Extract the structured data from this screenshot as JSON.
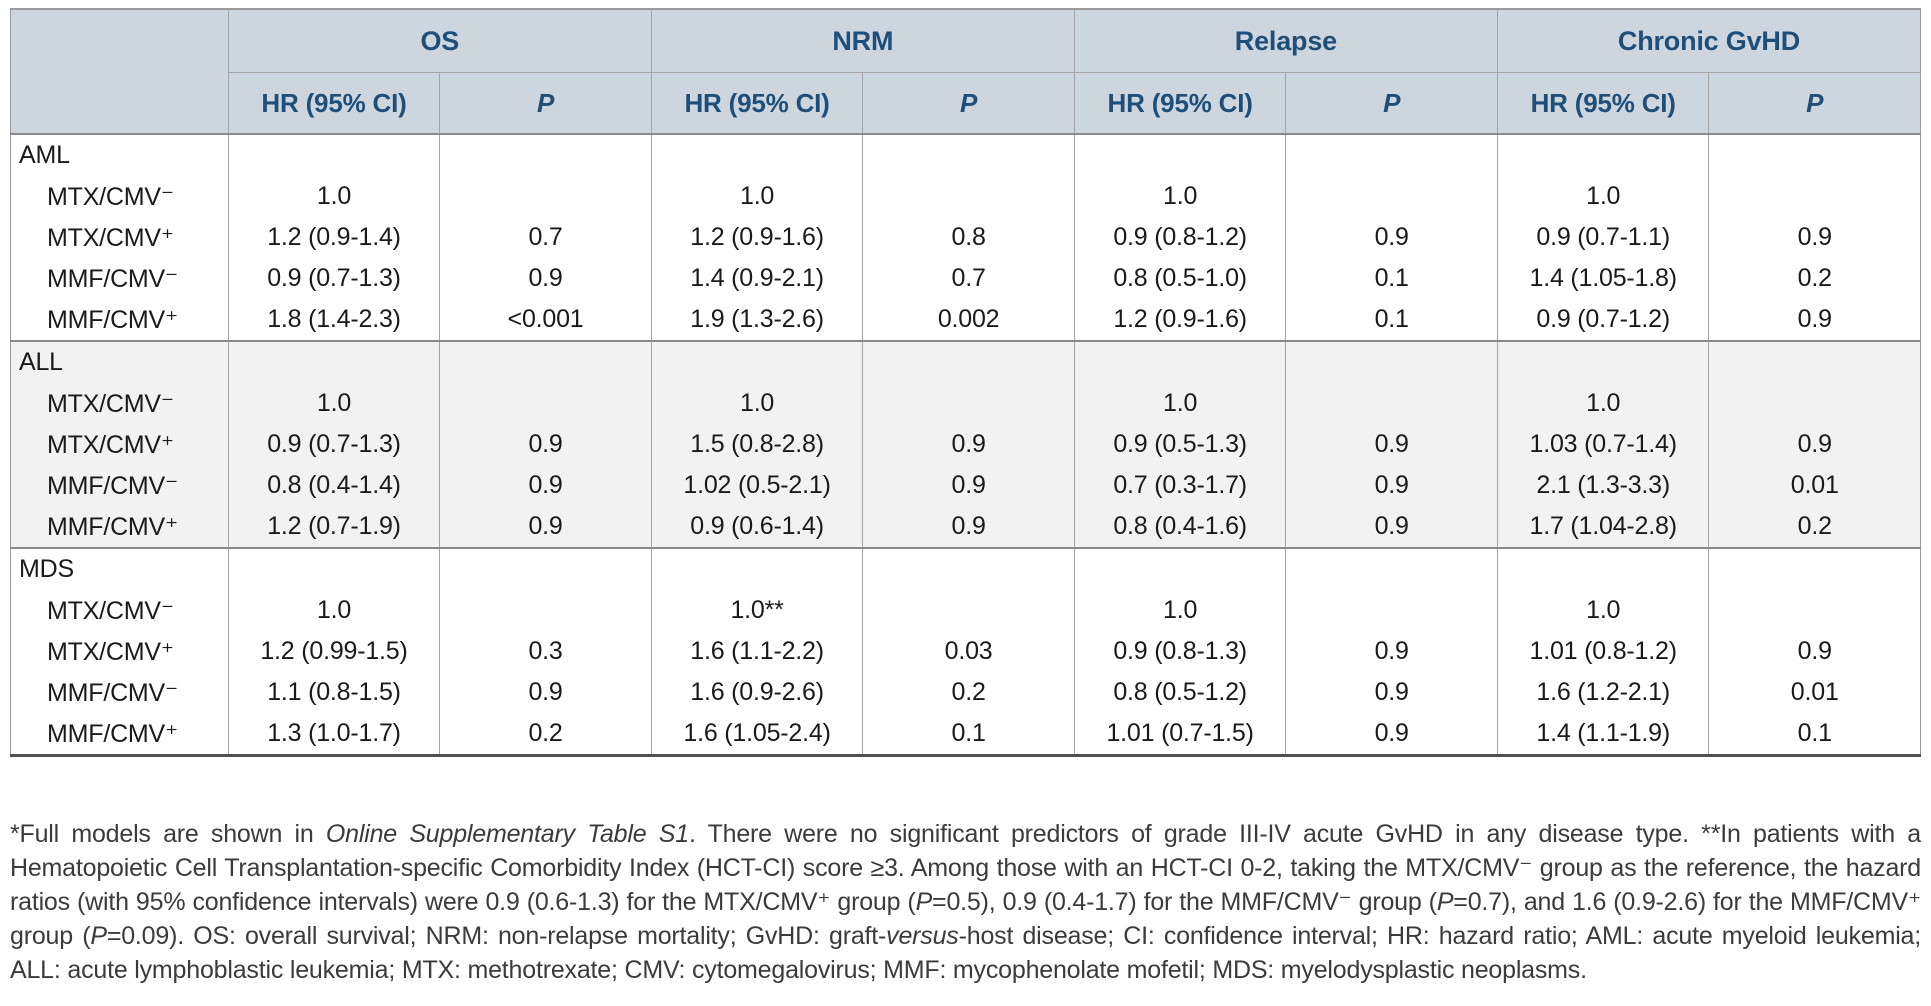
{
  "colors": {
    "header_bg": "#cdd6df",
    "header_text": "#1f4e79",
    "alt_section_bg": "#f2f2f2",
    "grid_line": "#a3a3a3",
    "section_divider": "#8a8a8a",
    "bottom_border": "#4f4f4f"
  },
  "table": {
    "groups": [
      {
        "label": "OS"
      },
      {
        "label": "NRM"
      },
      {
        "label": "Relapse"
      },
      {
        "label": "Chronic GvHD"
      }
    ],
    "subheaders": {
      "hr": "HR (95% CI)",
      "p": "P"
    },
    "sections": [
      {
        "name": "AML",
        "rows": [
          {
            "label": "MTX/CMV⁻",
            "cells": [
              "1.0",
              "",
              "1.0",
              "",
              "1.0",
              "",
              "1.0",
              ""
            ]
          },
          {
            "label": "MTX/CMV⁺",
            "cells": [
              "1.2 (0.9-1.4)",
              "0.7",
              "1.2 (0.9-1.6)",
              "0.8",
              "0.9 (0.8-1.2)",
              "0.9",
              "0.9 (0.7-1.1)",
              "0.9"
            ]
          },
          {
            "label": "MMF/CMV⁻",
            "cells": [
              "0.9 (0.7-1.3)",
              "0.9",
              "1.4 (0.9-2.1)",
              "0.7",
              "0.8 (0.5-1.0)",
              "0.1",
              "1.4 (1.05-1.8)",
              "0.2"
            ]
          },
          {
            "label": "MMF/CMV⁺",
            "cells": [
              "1.8 (1.4-2.3)",
              "<0.001",
              "1.9 (1.3-2.6)",
              "0.002",
              "1.2 (0.9-1.6)",
              "0.1",
              "0.9 (0.7-1.2)",
              "0.9"
            ]
          }
        ]
      },
      {
        "name": "ALL",
        "rows": [
          {
            "label": "MTX/CMV⁻",
            "cells": [
              "1.0",
              "",
              "1.0",
              "",
              "1.0",
              "",
              "1.0",
              ""
            ]
          },
          {
            "label": "MTX/CMV⁺",
            "cells": [
              "0.9 (0.7-1.3)",
              "0.9",
              "1.5 (0.8-2.8)",
              "0.9",
              "0.9 (0.5-1.3)",
              "0.9",
              "1.03 (0.7-1.4)",
              "0.9"
            ]
          },
          {
            "label": "MMF/CMV⁻",
            "cells": [
              "0.8 (0.4-1.4)",
              "0.9",
              "1.02 (0.5-2.1)",
              "0.9",
              "0.7 (0.3-1.7)",
              "0.9",
              "2.1 (1.3-3.3)",
              "0.01"
            ]
          },
          {
            "label": "MMF/CMV⁺",
            "cells": [
              "1.2 (0.7-1.9)",
              "0.9",
              "0.9 (0.6-1.4)",
              "0.9",
              "0.8 (0.4-1.6)",
              "0.9",
              "1.7 (1.04-2.8)",
              "0.2"
            ]
          }
        ]
      },
      {
        "name": "MDS",
        "rows": [
          {
            "label": "MTX/CMV⁻",
            "cells": [
              "1.0",
              "",
              "1.0**",
              "",
              "1.0",
              "",
              "1.0",
              ""
            ]
          },
          {
            "label": "MTX/CMV⁺",
            "cells": [
              "1.2 (0.99-1.5)",
              "0.3",
              "1.6 (1.1-2.2)",
              "0.03",
              "0.9 (0.8-1.3)",
              "0.9",
              "1.01 (0.8-1.2)",
              "0.9"
            ]
          },
          {
            "label": "MMF/CMV⁻",
            "cells": [
              "1.1 (0.8-1.5)",
              "0.9",
              "1.6 (0.9-2.6)",
              "0.2",
              "0.8 (0.5-1.2)",
              "0.9",
              "1.6 (1.2-2.1)",
              "0.01"
            ]
          },
          {
            "label": "MMF/CMV⁺",
            "cells": [
              "1.3 (1.0-1.7)",
              "0.2",
              "1.6 (1.05-2.4)",
              "0.1",
              "1.01 (0.7-1.5)",
              "0.9",
              "1.4 (1.1-1.9)",
              "0.1"
            ]
          }
        ]
      }
    ]
  },
  "footnote": {
    "segments": [
      {
        "t": "*Full models are shown in ",
        "i": false
      },
      {
        "t": "Online Supplementary Table S1",
        "i": true
      },
      {
        "t": ". There were no significant predictors of grade III-IV acute GvHD in any disease type. **In patients with a Hematopoietic Cell Transplantation-specific Comorbidity Index (HCT-CI) score ≥3. Among those with an HCT-CI 0-2, taking the MTX/CMV⁻ group as the reference, the hazard ratios (with 95% confidence intervals) were 0.9 (0.6-1.3) for the MTX/CMV⁺ group (",
        "i": false
      },
      {
        "t": "P",
        "i": true
      },
      {
        "t": "=0.5), 0.9 (0.4-1.7) for the MMF/CMV⁻ group (",
        "i": false
      },
      {
        "t": "P",
        "i": true
      },
      {
        "t": "=0.7), and 1.6 (0.9-2.6) for the MMF/CMV⁺ group (",
        "i": false
      },
      {
        "t": "P",
        "i": true
      },
      {
        "t": "=0.09). OS: overall survival; NRM: non-relapse mortality; GvHD: graft-",
        "i": false
      },
      {
        "t": "versus",
        "i": true
      },
      {
        "t": "-host disease; CI: confidence interval; HR: hazard ratio; AML: acute myeloid leukemia; ALL: acute lymphoblastic leukemia; MTX: methotrexate; CMV: cytomegalovirus; MMF: mycophenolate mofetil; MDS: myelodysplastic neoplasms.",
        "i": false
      }
    ]
  }
}
